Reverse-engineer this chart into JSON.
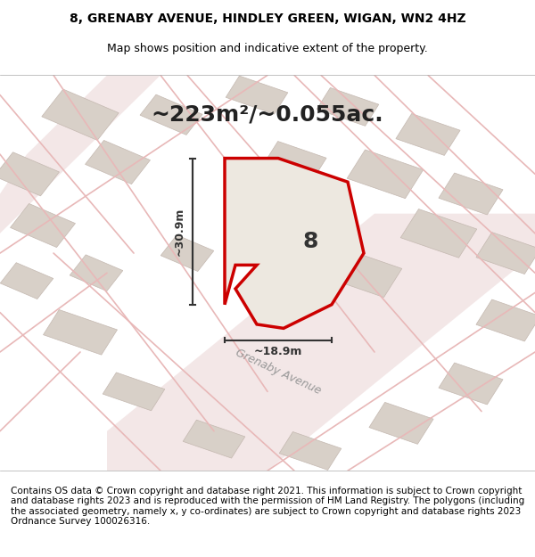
{
  "title_line1": "8, GRENABY AVENUE, HINDLEY GREEN, WIGAN, WN2 4HZ",
  "title_line2": "Map shows position and indicative extent of the property.",
  "area_label": "~223m²/~0.055ac.",
  "property_number": "8",
  "width_label": "~18.9m",
  "height_label": "~30.9m",
  "footer_text": "Contains OS data © Crown copyright and database right 2021. This information is subject to Crown copyright and database rights 2023 and is reproduced with the permission of HM Land Registry. The polygons (including the associated geometry, namely x, y co-ordinates) are subject to Crown copyright and database rights 2023 Ordnance Survey 100026316.",
  "bg_color": "#f2ede8",
  "map_bg": "#f0ece8",
  "property_fill": "#e8e0d8",
  "property_edge": "#cc0000",
  "road_color": "#e8c8c8",
  "building_fill": "#d8d0c8",
  "building_edge": "#c0b8b0",
  "dim_color": "#333333",
  "street_label_color": "#999999",
  "title_fontsize": 10,
  "subtitle_fontsize": 9,
  "area_fontsize": 18,
  "footer_fontsize": 7.5
}
